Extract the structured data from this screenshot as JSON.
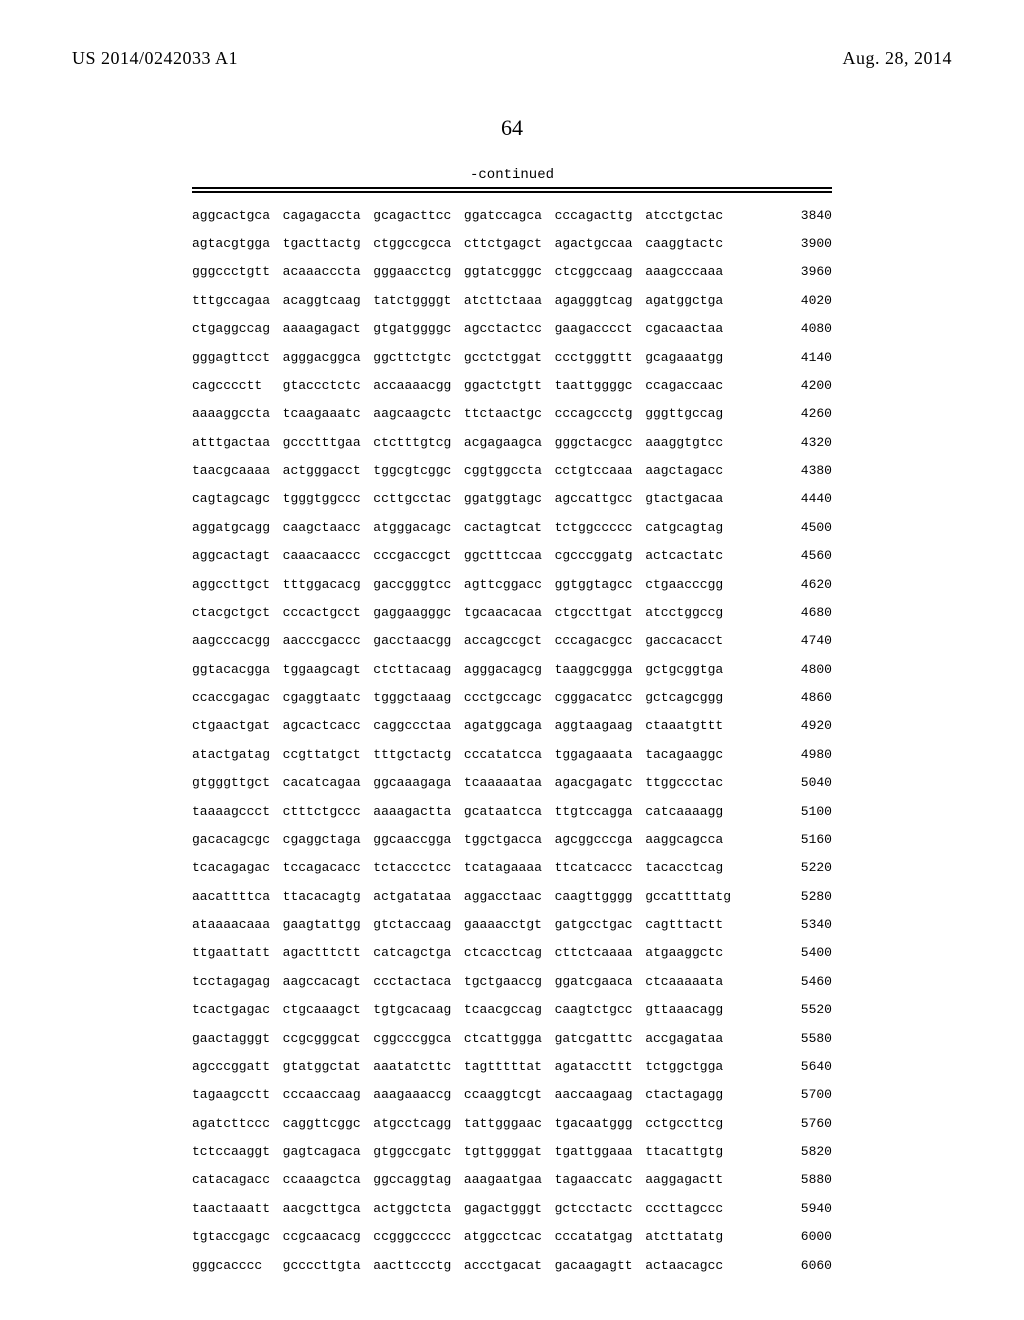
{
  "header": {
    "publication_number": "US 2014/0242033 A1",
    "publication_date": "Aug. 28, 2014"
  },
  "page_number": "64",
  "continued_label": "-continued",
  "sequence": {
    "font_family": "Courier New",
    "font_size_pt": 10,
    "color": "#000000",
    "rows": [
      {
        "blocks": [
          "aggcactgca",
          "cagagaccta",
          "gcagacttcc",
          "ggatccagca",
          "cccagacttg",
          "atcctgctac"
        ],
        "pos": 3840
      },
      {
        "blocks": [
          "agtacgtgga",
          "tgacttactg",
          "ctggccgcca",
          "cttctgagct",
          "agactgccaa",
          "caaggtactc"
        ],
        "pos": 3900
      },
      {
        "blocks": [
          "gggccctgtt",
          "acaaacccta",
          "gggaacctcg",
          "ggtatcgggc",
          "ctcggccaag",
          "aaagcccaaa"
        ],
        "pos": 3960
      },
      {
        "blocks": [
          "tttgccagaa",
          "acaggtcaag",
          "tatctggggt",
          "atcttctaaa",
          "agagggtcag",
          "agatggctga"
        ],
        "pos": 4020
      },
      {
        "blocks": [
          "ctgaggccag",
          "aaaagagact",
          "gtgatggggc",
          "agcctactcc",
          "gaagacccct",
          "cgacaactaa"
        ],
        "pos": 4080
      },
      {
        "blocks": [
          "gggagttcct",
          "agggacggca",
          "ggcttctgtc",
          "gcctctggat",
          "ccctgggttt",
          "gcagaaatgg"
        ],
        "pos": 4140
      },
      {
        "blocks": [
          "cagcccctt",
          "gtaccctctc",
          "accaaaacgg",
          "ggactctgtt",
          "taattggggc",
          "ccagaccaac"
        ],
        "pos": 4200
      },
      {
        "blocks": [
          "aaaaggccta",
          "tcaagaaatc",
          "aagcaagctc",
          "ttctaactgc",
          "cccagccctg",
          "gggttgccag"
        ],
        "pos": 4260
      },
      {
        "blocks": [
          "atttgactaa",
          "gccctttgaa",
          "ctctttgtcg",
          "acgagaagca",
          "gggctacgcc",
          "aaaggtgtcc"
        ],
        "pos": 4320
      },
      {
        "blocks": [
          "taacgcaaaa",
          "actgggacct",
          "tggcgtcggc",
          "cggtggccta",
          "cctgtccaaa",
          "aagctagacc"
        ],
        "pos": 4380
      },
      {
        "blocks": [
          "cagtagcagc",
          "tgggtggccc",
          "ccttgcctac",
          "ggatggtagc",
          "agccattgcc",
          "gtactgacaa"
        ],
        "pos": 4440
      },
      {
        "blocks": [
          "aggatgcagg",
          "caagctaacc",
          "atgggacagc",
          "cactagtcat",
          "tctggccccc",
          "catgcagtag"
        ],
        "pos": 4500
      },
      {
        "blocks": [
          "aggcactagt",
          "caaacaaccc",
          "cccgaccgct",
          "ggctttccaa",
          "cgcccggatg",
          "actcactatc"
        ],
        "pos": 4560
      },
      {
        "blocks": [
          "aggccttgct",
          "tttggacacg",
          "gaccgggtcc",
          "agttcggacc",
          "ggtggtagcc",
          "ctgaacccgg"
        ],
        "pos": 4620
      },
      {
        "blocks": [
          "ctacgctgct",
          "cccactgcct",
          "gaggaagggc",
          "tgcaacacaa",
          "ctgccttgat",
          "atcctggccg"
        ],
        "pos": 4680
      },
      {
        "blocks": [
          "aagcccacgg",
          "aacccgaccc",
          "gacctaacgg",
          "accagccgct",
          "cccagacgcc",
          "gaccacacct"
        ],
        "pos": 4740
      },
      {
        "blocks": [
          "ggtacacgga",
          "tggaagcagt",
          "ctcttacaag",
          "agggacagcg",
          "taaggcggga",
          "gctgcggtga"
        ],
        "pos": 4800
      },
      {
        "blocks": [
          "ccaccgagac",
          "cgaggtaatc",
          "tgggctaaag",
          "ccctgccagc",
          "cgggacatcc",
          "gctcagcggg"
        ],
        "pos": 4860
      },
      {
        "blocks": [
          "ctgaactgat",
          "agcactcacc",
          "caggccctaa",
          "agatggcaga",
          "aggtaagaag",
          "ctaaatgttt"
        ],
        "pos": 4920
      },
      {
        "blocks": [
          "atactgatag",
          "ccgttatgct",
          "tttgctactg",
          "cccatatcca",
          "tggagaaata",
          "tacagaaggc"
        ],
        "pos": 4980
      },
      {
        "blocks": [
          "gtgggttgct",
          "cacatcagaa",
          "ggcaaagaga",
          "tcaaaaataa",
          "agacgagatc",
          "ttggccctac"
        ],
        "pos": 5040
      },
      {
        "blocks": [
          "taaaagccct",
          "ctttctgccc",
          "aaaagactta",
          "gcataatcca",
          "ttgtccagga",
          "catcaaaagg"
        ],
        "pos": 5100
      },
      {
        "blocks": [
          "gacacagcgc",
          "cgaggctaga",
          "ggcaaccgga",
          "tggctgacca",
          "agcggcccga",
          "aaggcagcca"
        ],
        "pos": 5160
      },
      {
        "blocks": [
          "tcacagagac",
          "tccagacacc",
          "tctaccctcc",
          "tcatagaaaa",
          "ttcatcaccc",
          "tacacctcag"
        ],
        "pos": 5220
      },
      {
        "blocks": [
          "aacattttca",
          "ttacacagtg",
          "actgatataa",
          "aggacctaac",
          "caagttgggg",
          "gccattttatg"
        ],
        "pos": 5280
      },
      {
        "blocks": [
          "ataaaacaaa",
          "gaagtattgg",
          "gtctaccaag",
          "gaaaacctgt",
          "gatgcctgac",
          "cagtttactt"
        ],
        "pos": 5340
      },
      {
        "blocks": [
          "ttgaattatt",
          "agactttctt",
          "catcagctga",
          "ctcacctcag",
          "cttctcaaaa",
          "atgaaggctc"
        ],
        "pos": 5400
      },
      {
        "blocks": [
          "tcctagagag",
          "aagccacagt",
          "ccctactaca",
          "tgctgaaccg",
          "ggatcgaaca",
          "ctcaaaaata"
        ],
        "pos": 5460
      },
      {
        "blocks": [
          "tcactgagac",
          "ctgcaaagct",
          "tgtgcacaag",
          "tcaacgccag",
          "caagtctgcc",
          "gttaaacagg"
        ],
        "pos": 5520
      },
      {
        "blocks": [
          "gaactagggt",
          "ccgcgggcat",
          "cggcccggca",
          "ctcattggga",
          "gatcgatttc",
          "accgagataa"
        ],
        "pos": 5580
      },
      {
        "blocks": [
          "agcccggatt",
          "gtatggctat",
          "aaatatcttc",
          "tagtttttat",
          "agataccttt",
          "tctggctgga"
        ],
        "pos": 5640
      },
      {
        "blocks": [
          "tagaagcctt",
          "cccaaccaag",
          "aaagaaaccg",
          "ccaaggtcgt",
          "aaccaagaag",
          "ctactagagg"
        ],
        "pos": 5700
      },
      {
        "blocks": [
          "agatcttccc",
          "caggttcggc",
          "atgcctcagg",
          "tattgggaac",
          "tgacaatggg",
          "cctgccttcg"
        ],
        "pos": 5760
      },
      {
        "blocks": [
          "tctccaaggt",
          "gagtcagaca",
          "gtggccgatc",
          "tgttggggat",
          "tgattggaaa",
          "ttacattgtg"
        ],
        "pos": 5820
      },
      {
        "blocks": [
          "catacagacc",
          "ccaaagctca",
          "ggccaggtag",
          "aaagaatgaa",
          "tagaaccatc",
          "aaggagactt"
        ],
        "pos": 5880
      },
      {
        "blocks": [
          "taactaaatt",
          "aacgcttgca",
          "actggctcta",
          "gagactgggt",
          "gctcctactc",
          "cccttagccc"
        ],
        "pos": 5940
      },
      {
        "blocks": [
          "tgtaccgagc",
          "ccgcaacacg",
          "ccgggccccc",
          "atggcctcac",
          "cccatatgag",
          "atcttatatg"
        ],
        "pos": 6000
      },
      {
        "blocks": [
          "gggcacccc",
          "gccccttgta",
          "aacttccctg",
          "accctgacat",
          "gacaagagtt",
          "actaacagcc"
        ],
        "pos": 6060
      }
    ]
  }
}
